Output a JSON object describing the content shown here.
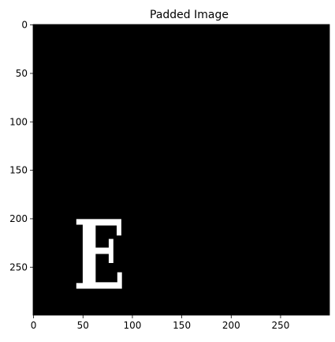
{
  "chart_data": {
    "type": "heatmap",
    "title": "Padded Image",
    "xlabel": "",
    "ylabel": "",
    "image_width": 300,
    "image_height": 300,
    "xlim": [
      -0.5,
      299.5
    ],
    "ylim": [
      299.5,
      -0.5
    ],
    "x_ticks": [
      0,
      50,
      100,
      150,
      200,
      250
    ],
    "y_ticks": [
      0,
      50,
      100,
      150,
      200,
      250
    ],
    "background_value": 0,
    "glyph": {
      "character": "E",
      "pixel_value": 255,
      "x_range": [
        40,
        93
      ],
      "y_range": [
        200,
        272
      ]
    },
    "colormap": "gray",
    "background_color": "#000000",
    "glyph_color": "#ffffff",
    "grid": false
  }
}
